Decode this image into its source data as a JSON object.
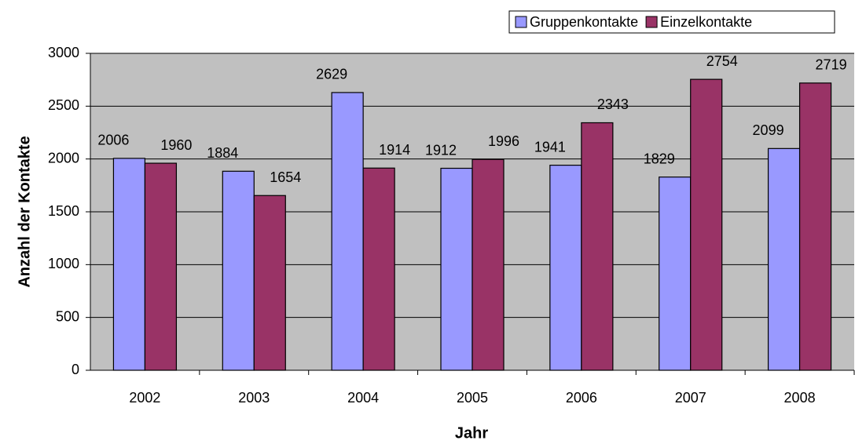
{
  "chart_data": {
    "type": "bar",
    "xlabel": "Jahr",
    "ylabel": "Anzahl der Kontakte",
    "categories": [
      "2002",
      "2003",
      "2004",
      "2005",
      "2006",
      "2007",
      "2008"
    ],
    "series": [
      {
        "name": "Gruppenkontakte",
        "color": "#9999ff",
        "values": [
          2006,
          1884,
          2629,
          1912,
          1941,
          1829,
          2099
        ]
      },
      {
        "name": "Einzelkontakte",
        "color": "#993366",
        "values": [
          1960,
          1654,
          1914,
          1996,
          2343,
          2754,
          2719
        ]
      }
    ],
    "ylim": [
      0,
      3000
    ],
    "yticks": [
      0,
      500,
      1000,
      1500,
      2000,
      2500,
      3000
    ],
    "grid": true,
    "background": "#c0c0c0"
  }
}
